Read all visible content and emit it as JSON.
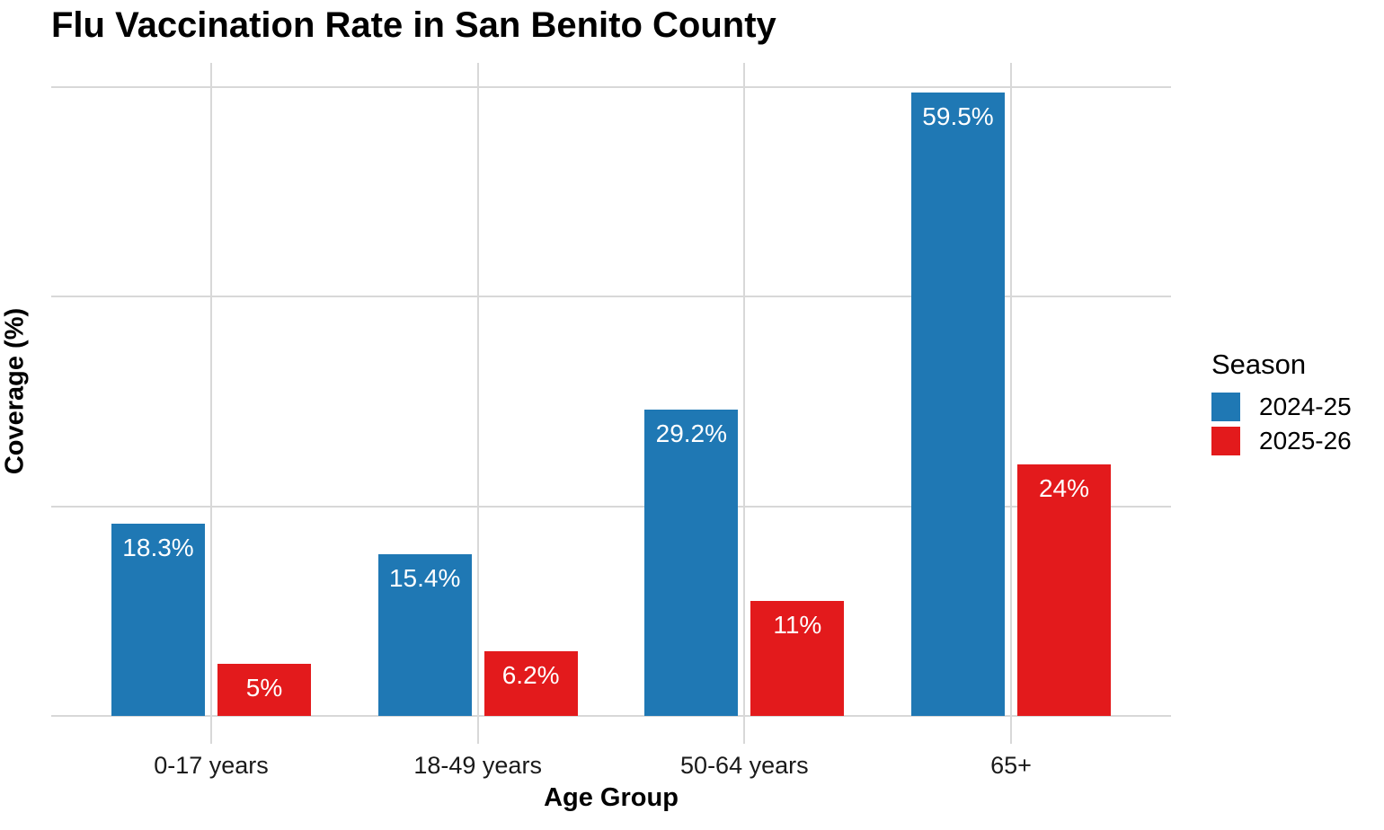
{
  "chart_data": {
    "type": "bar",
    "title": "Flu Vaccination Rate in San Benito County",
    "xlabel": "Age Group",
    "ylabel": "Coverage (%)",
    "categories": [
      "0-17 years",
      "18-49 years",
      "50-64 years",
      "65+"
    ],
    "series": [
      {
        "name": "2024-25",
        "color": "#1f78b4",
        "values": [
          18.3,
          15.4,
          29.2,
          59.5
        ],
        "bar_labels": [
          "18.3%",
          "15.4%",
          "29.2%",
          "59.5%"
        ]
      },
      {
        "name": "2025-26",
        "color": "#e31a1c",
        "values": [
          5,
          6.2,
          11,
          24
        ],
        "bar_labels": [
          "5%",
          "6.2%",
          "11%",
          "24%"
        ]
      }
    ],
    "ylim": [
      0,
      62.3
    ],
    "gridlines_y": [
      0,
      20,
      40,
      60
    ],
    "grid": "major-only, light gray, no axis lines",
    "legend_title": "Season",
    "legend_position": "right",
    "bar_label_color": "#ffffff",
    "grid_color": "#d8d8d8"
  }
}
